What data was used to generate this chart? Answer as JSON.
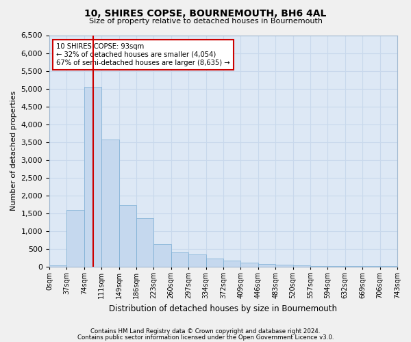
{
  "title": "10, SHIRES COPSE, BOURNEMOUTH, BH6 4AL",
  "subtitle": "Size of property relative to detached houses in Bournemouth",
  "xlabel": "Distribution of detached houses by size in Bournemouth",
  "ylabel": "Number of detached properties",
  "footer1": "Contains HM Land Registry data © Crown copyright and database right 2024.",
  "footer2": "Contains public sector information licensed under the Open Government Licence v3.0.",
  "annotation_title": "10 SHIRES COPSE: 93sqm",
  "annotation_line2": "← 32% of detached houses are smaller (4,054)",
  "annotation_line3": "67% of semi-detached houses are larger (8,635) →",
  "property_sqm": 93,
  "bar_color": "#c5d8ee",
  "bar_edge_color": "#7aadd4",
  "vline_color": "#cc0000",
  "annotation_box_color": "#cc0000",
  "background_color": "#dde8f5",
  "grid_color": "#c8d8ec",
  "bin_edges": [
    0,
    37,
    74,
    111,
    149,
    186,
    223,
    260,
    297,
    334,
    372,
    409,
    446,
    483,
    520,
    557,
    594,
    632,
    669,
    706,
    743
  ],
  "bin_labels": [
    "0sqm",
    "37sqm",
    "74sqm",
    "111sqm",
    "149sqm",
    "186sqm",
    "223sqm",
    "260sqm",
    "297sqm",
    "334sqm",
    "372sqm",
    "409sqm",
    "446sqm",
    "483sqm",
    "520sqm",
    "557sqm",
    "594sqm",
    "632sqm",
    "669sqm",
    "706sqm",
    "743sqm"
  ],
  "counts": [
    40,
    1590,
    5050,
    3560,
    1720,
    1350,
    620,
    400,
    340,
    220,
    160,
    110,
    80,
    50,
    30,
    15,
    10,
    5,
    5,
    5
  ],
  "ylim": [
    0,
    6500
  ],
  "yticks": [
    0,
    500,
    1000,
    1500,
    2000,
    2500,
    3000,
    3500,
    4000,
    4500,
    5000,
    5500,
    6000,
    6500
  ]
}
